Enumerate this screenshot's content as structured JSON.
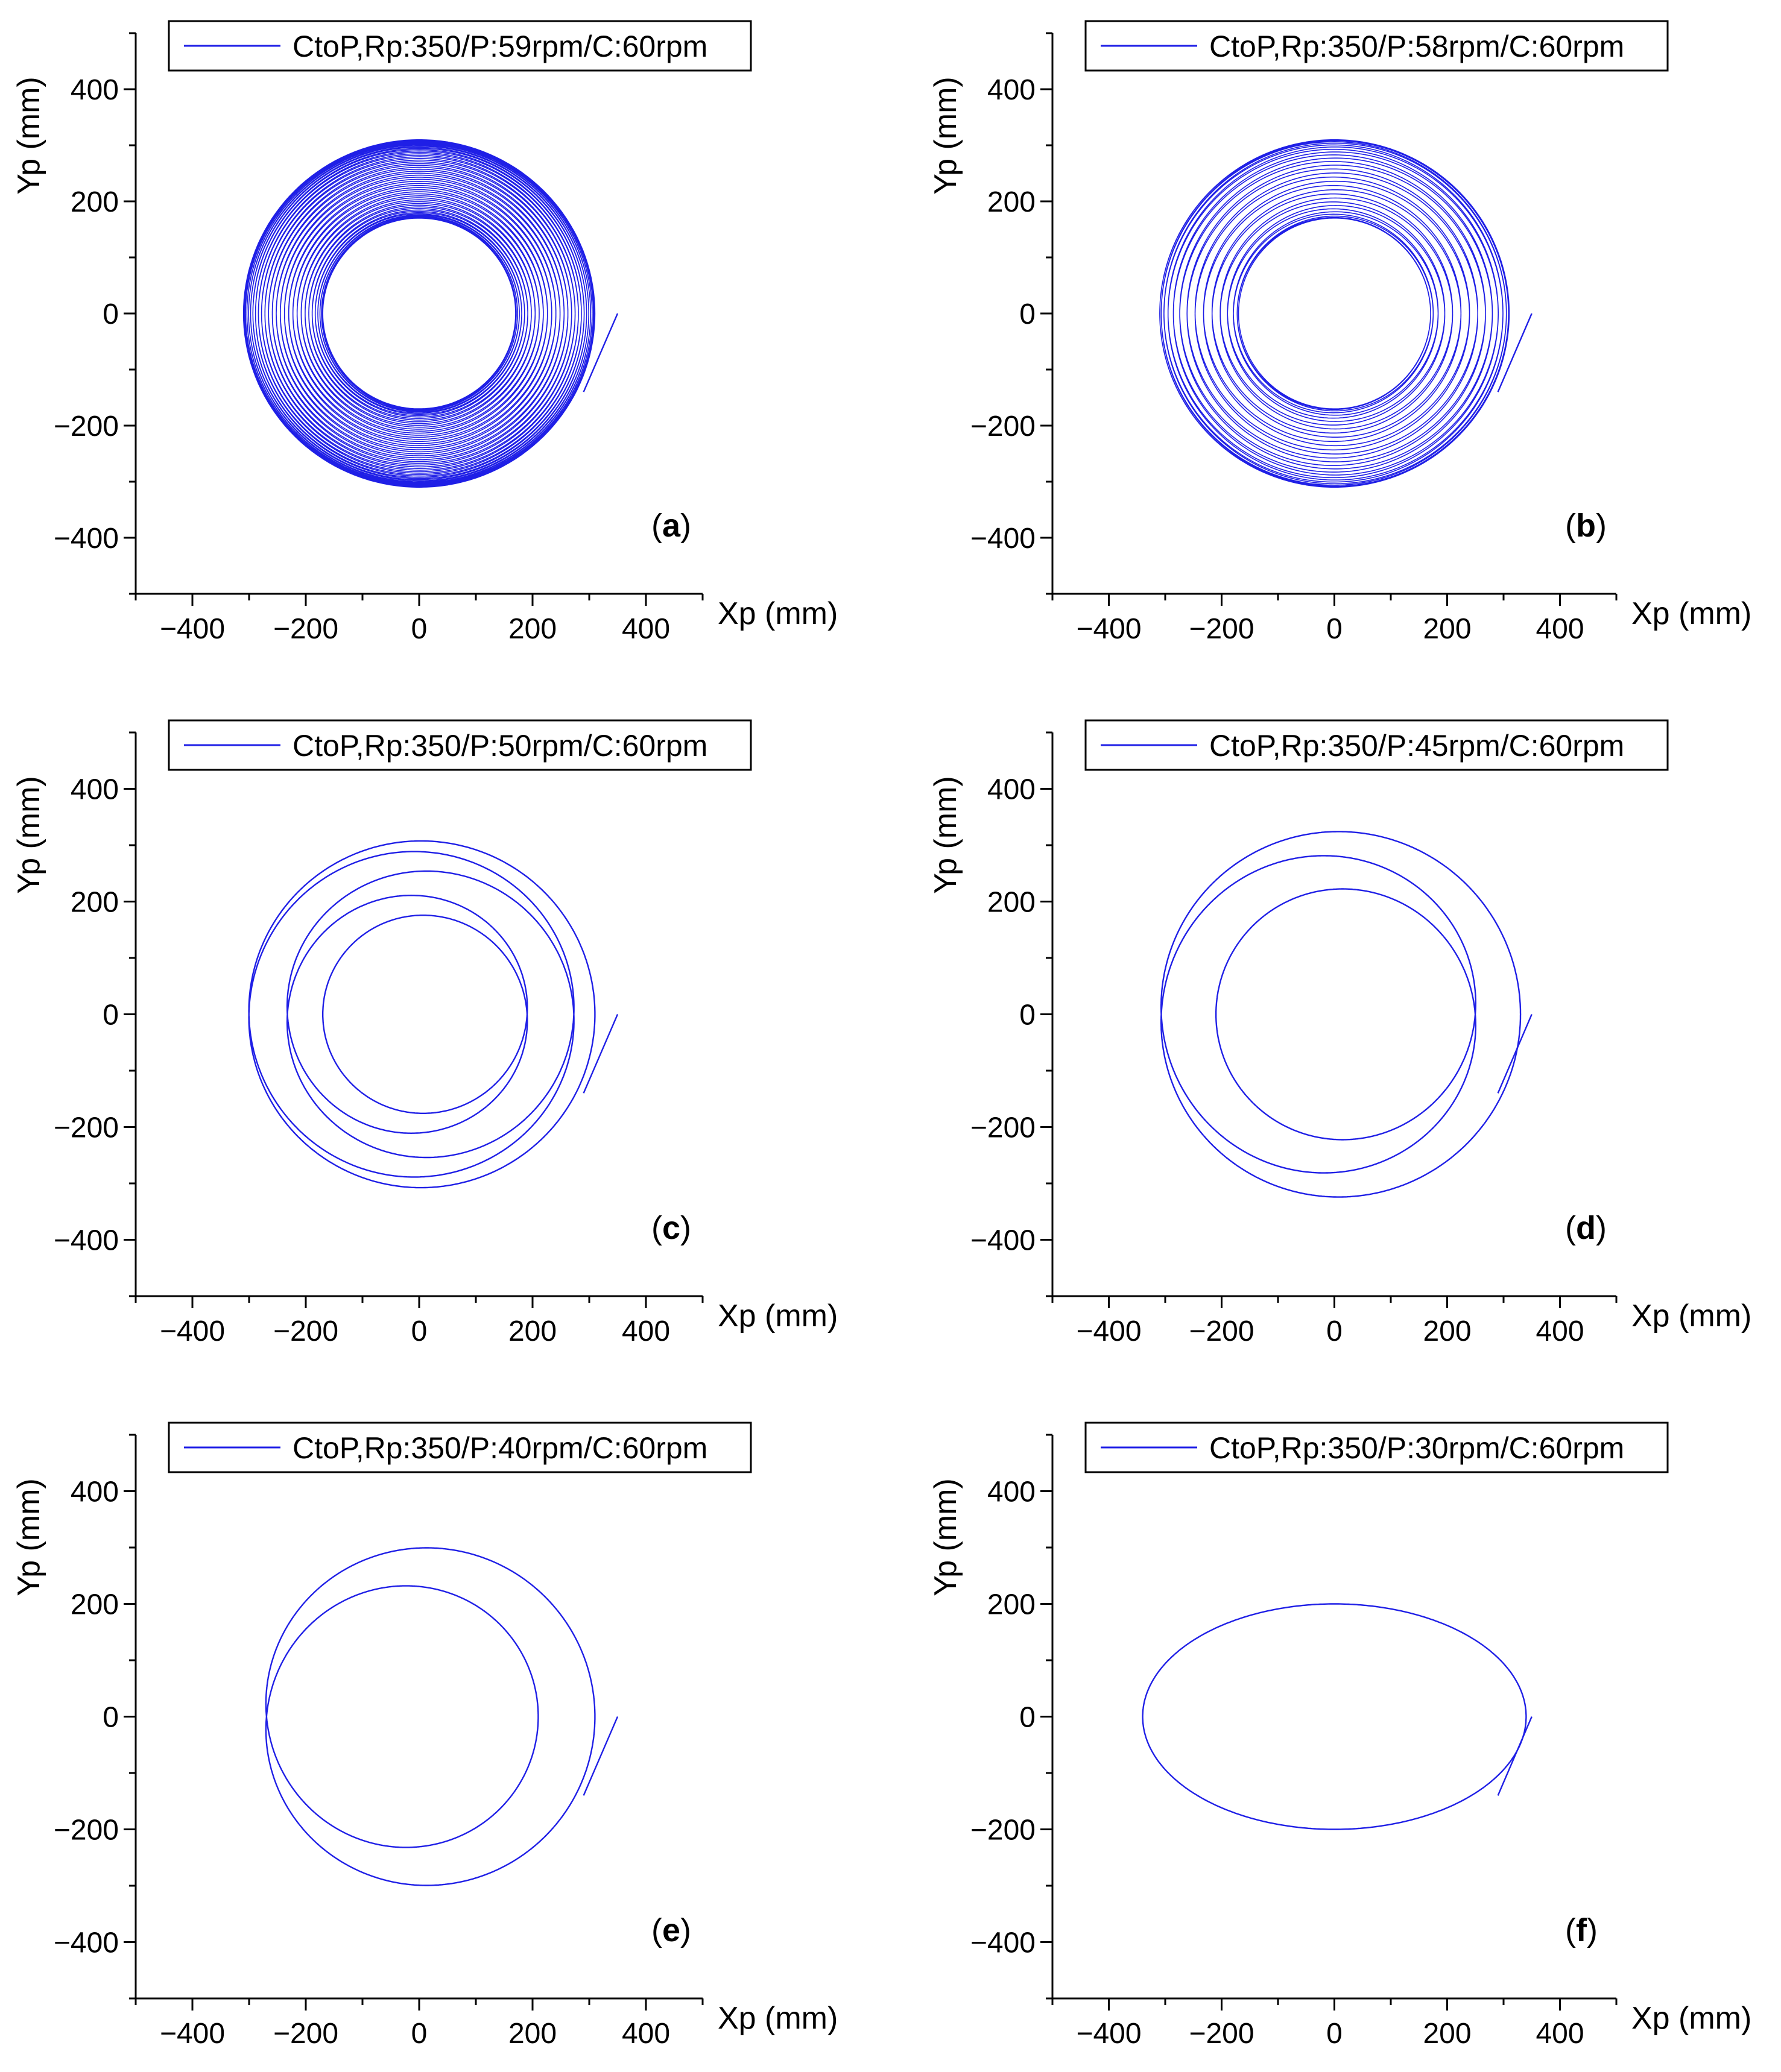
{
  "colors": {
    "series": "#1f1fe6",
    "axis": "#000000",
    "background": "#ffffff"
  },
  "chart_data": [
    {
      "panel": "a",
      "type": "line",
      "legend": "CtoP,Rp:350/P:59rpm/C:60rpm",
      "xlabel": "Xp (mm)",
      "ylabel": "Yp (mm)",
      "xlim": [
        -500,
        500
      ],
      "ylim": [
        -500,
        500
      ],
      "xticks": [
        -400,
        -200,
        0,
        200,
        400
      ],
      "yticks": [
        -400,
        -200,
        0,
        200,
        400
      ],
      "tick_labels_x": [
        "−400",
        "−200",
        "0",
        "200",
        "400"
      ],
      "tick_labels_y": [
        "−400",
        "−200",
        "0",
        "200",
        "400"
      ],
      "pattern": {
        "rp": 350,
        "p_rpm": 59,
        "c_rpm": 60,
        "outer_radius": 310,
        "inner_radius": 170
      }
    },
    {
      "panel": "b",
      "type": "line",
      "legend": "CtoP,Rp:350/P:58rpm/C:60rpm",
      "xlabel": "Xp (mm)",
      "ylabel": "Yp (mm)",
      "xlim": [
        -500,
        500
      ],
      "ylim": [
        -500,
        500
      ],
      "xticks": [
        -400,
        -200,
        0,
        200,
        400
      ],
      "yticks": [
        -400,
        -200,
        0,
        200,
        400
      ],
      "tick_labels_x": [
        "−400",
        "−200",
        "0",
        "200",
        "400"
      ],
      "tick_labels_y": [
        "−400",
        "−200",
        "0",
        "200",
        "400"
      ],
      "pattern": {
        "rp": 350,
        "p_rpm": 58,
        "c_rpm": 60,
        "outer_radius": 310,
        "inner_radius": 170
      }
    },
    {
      "panel": "c",
      "type": "line",
      "legend": "CtoP,Rp:350/P:50rpm/C:60rpm",
      "xlabel": "Xp (mm)",
      "ylabel": "Yp (mm)",
      "xlim": [
        -500,
        500
      ],
      "ylim": [
        -500,
        500
      ],
      "xticks": [
        -400,
        -200,
        0,
        200,
        400
      ],
      "yticks": [
        -400,
        -200,
        0,
        200,
        400
      ],
      "tick_labels_x": [
        "−400",
        "−200",
        "0",
        "200",
        "400"
      ],
      "tick_labels_y": [
        "−400",
        "−200",
        "0",
        "200",
        "400"
      ],
      "pattern": {
        "rp": 350,
        "p_rpm": 50,
        "c_rpm": 60,
        "outer_radius": 310,
        "inner_radius": 170
      }
    },
    {
      "panel": "d",
      "type": "line",
      "legend": "CtoP,Rp:350/P:45rpm/C:60rpm",
      "xlabel": "Xp (mm)",
      "ylabel": "Yp (mm)",
      "xlim": [
        -500,
        500
      ],
      "ylim": [
        -500,
        500
      ],
      "xticks": [
        -400,
        -200,
        0,
        200,
        400
      ],
      "yticks": [
        -400,
        -200,
        0,
        200,
        400
      ],
      "tick_labels_x": [
        "−400",
        "−200",
        "0",
        "200",
        "400"
      ],
      "tick_labels_y": [
        "−400",
        "−200",
        "0",
        "200",
        "400"
      ],
      "pattern": {
        "rp": 350,
        "p_rpm": 45,
        "c_rpm": 60,
        "outer_radius": 330,
        "inner_radius": 210
      }
    },
    {
      "panel": "e",
      "type": "line",
      "legend": "CtoP,Rp:350/P:40rpm/C:60rpm",
      "xlabel": "Xp (mm)",
      "ylabel": "Yp (mm)",
      "xlim": [
        -500,
        500
      ],
      "ylim": [
        -500,
        500
      ],
      "xticks": [
        -400,
        -200,
        0,
        200,
        400
      ],
      "yticks": [
        -400,
        -200,
        0,
        200,
        400
      ],
      "tick_labels_x": [
        "−400",
        "−200",
        "0",
        "200",
        "400"
      ],
      "tick_labels_y": [
        "−400",
        "−200",
        "0",
        "200",
        "400"
      ],
      "pattern": {
        "rp": 350,
        "p_rpm": 40,
        "c_rpm": 60,
        "outer_radius": 310,
        "inner_radius": 210
      }
    },
    {
      "panel": "f",
      "type": "line",
      "legend": "CtoP,Rp:350/P:30rpm/C:60rpm",
      "xlabel": "Xp (mm)",
      "ylabel": "Yp (mm)",
      "xlim": [
        -500,
        500
      ],
      "ylim": [
        -500,
        500
      ],
      "xticks": [
        -400,
        -200,
        0,
        200,
        400
      ],
      "yticks": [
        -400,
        -200,
        0,
        200,
        400
      ],
      "tick_labels_x": [
        "−400",
        "−200",
        "0",
        "200",
        "400"
      ],
      "tick_labels_y": [
        "−400",
        "−200",
        "0",
        "200",
        "400"
      ],
      "pattern": {
        "rp": 350,
        "p_rpm": 30,
        "c_rpm": 60,
        "semi_axis_x": 340,
        "semi_axis_y": 200
      }
    }
  ]
}
